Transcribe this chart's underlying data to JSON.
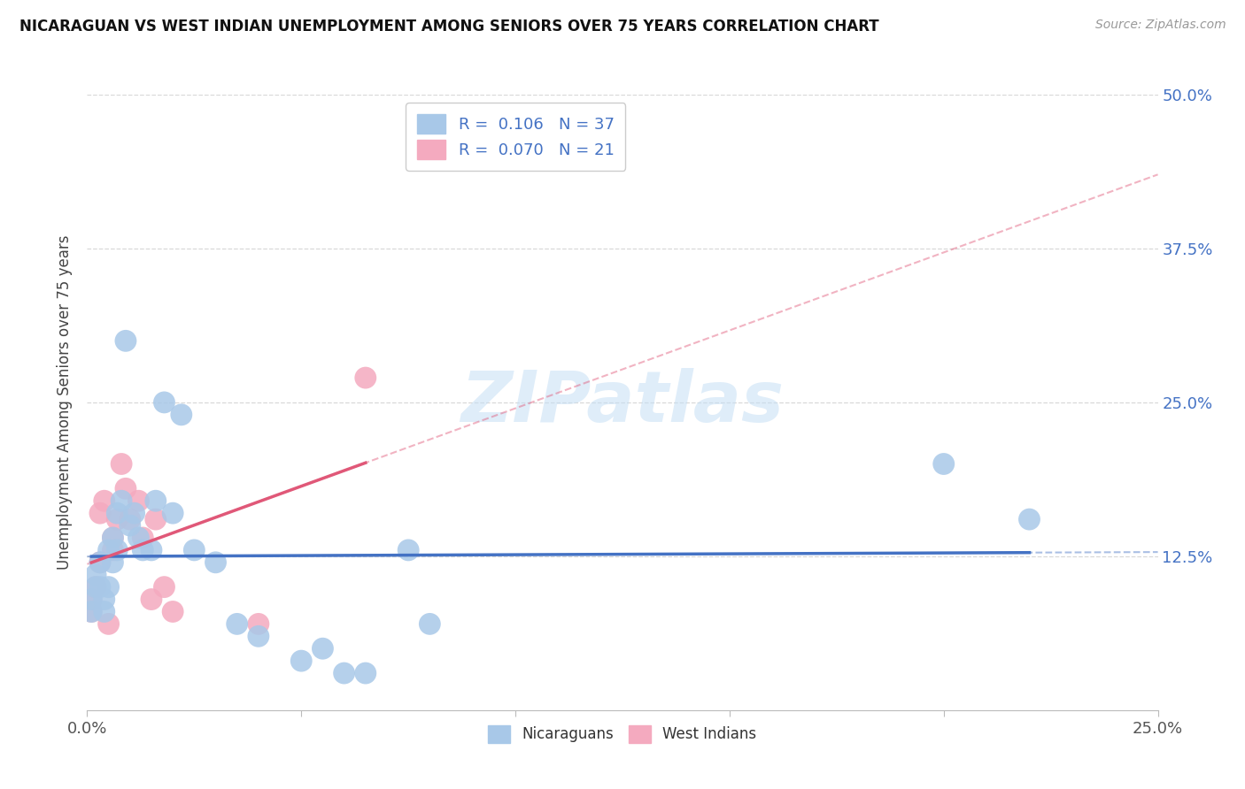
{
  "title": "NICARAGUAN VS WEST INDIAN UNEMPLOYMENT AMONG SENIORS OVER 75 YEARS CORRELATION CHART",
  "source": "Source: ZipAtlas.com",
  "ylabel": "Unemployment Among Seniors over 75 years",
  "xlim": [
    0.0,
    0.25
  ],
  "ylim": [
    0.0,
    0.5
  ],
  "ytick_positions": [
    0.125,
    0.25,
    0.375,
    0.5
  ],
  "ytick_labels": [
    "12.5%",
    "25.0%",
    "37.5%",
    "50.0%"
  ],
  "nicaraguan_color": "#a8c8e8",
  "west_indian_color": "#f4aabf",
  "nicaraguan_line_color": "#4472c4",
  "west_indian_line_color": "#e05878",
  "nicaraguan_R": 0.106,
  "nicaraguan_N": 37,
  "west_indian_R": 0.07,
  "west_indian_N": 21,
  "watermark_text": "ZIPatlas",
  "background_color": "#ffffff",
  "grid_color": "#d8d8d8",
  "nicaraguan_x": [
    0.001,
    0.001,
    0.002,
    0.002,
    0.003,
    0.003,
    0.004,
    0.004,
    0.005,
    0.005,
    0.006,
    0.006,
    0.007,
    0.007,
    0.008,
    0.009,
    0.01,
    0.011,
    0.012,
    0.013,
    0.015,
    0.016,
    0.018,
    0.02,
    0.022,
    0.025,
    0.03,
    0.035,
    0.04,
    0.05,
    0.055,
    0.06,
    0.065,
    0.075,
    0.08,
    0.2,
    0.22
  ],
  "nicaraguan_y": [
    0.08,
    0.09,
    0.1,
    0.11,
    0.1,
    0.12,
    0.08,
    0.09,
    0.1,
    0.13,
    0.12,
    0.14,
    0.13,
    0.16,
    0.17,
    0.3,
    0.15,
    0.16,
    0.14,
    0.13,
    0.13,
    0.17,
    0.25,
    0.16,
    0.24,
    0.13,
    0.12,
    0.07,
    0.06,
    0.04,
    0.05,
    0.03,
    0.03,
    0.13,
    0.07,
    0.2,
    0.155
  ],
  "west_indian_x": [
    0.001,
    0.001,
    0.002,
    0.003,
    0.003,
    0.004,
    0.005,
    0.006,
    0.006,
    0.007,
    0.008,
    0.009,
    0.01,
    0.012,
    0.013,
    0.015,
    0.016,
    0.018,
    0.02,
    0.04,
    0.065
  ],
  "west_indian_y": [
    0.08,
    0.09,
    0.1,
    0.12,
    0.16,
    0.17,
    0.07,
    0.13,
    0.14,
    0.155,
    0.2,
    0.18,
    0.155,
    0.17,
    0.14,
    0.09,
    0.155,
    0.1,
    0.08,
    0.07,
    0.27
  ]
}
